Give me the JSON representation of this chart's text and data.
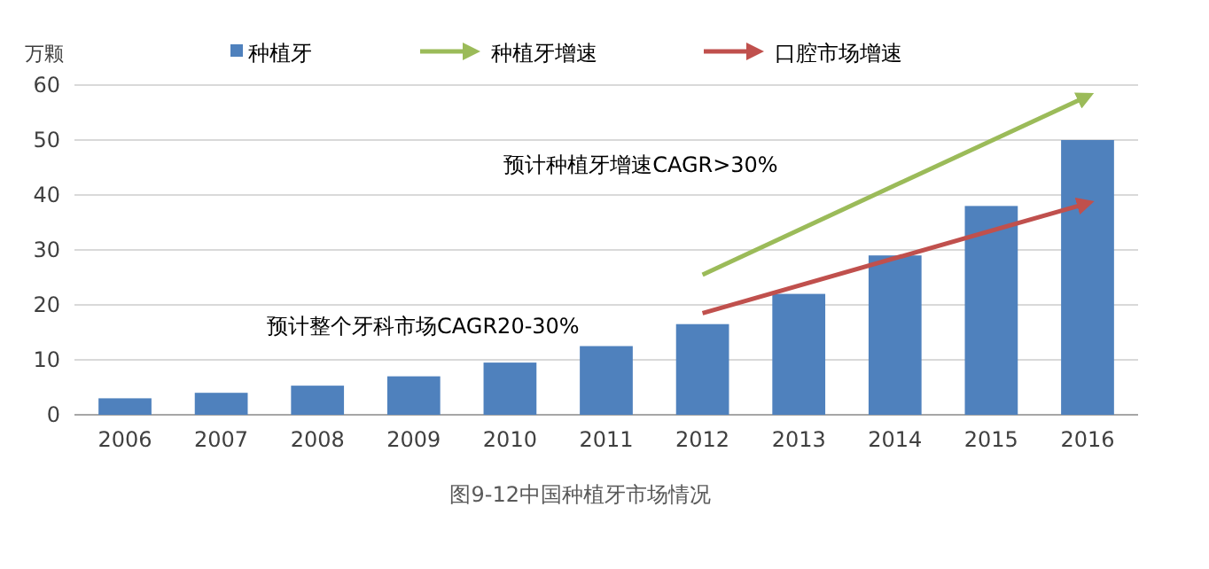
{
  "chart_data": {
    "type": "bar",
    "title": "图9-12中国种植牙市场情况",
    "ylabel": "万颗",
    "categories": [
      "2006",
      "2007",
      "2008",
      "2009",
      "2010",
      "2011",
      "2012",
      "2013",
      "2014",
      "2015",
      "2016"
    ],
    "series": [
      {
        "name": "种植牙",
        "color": "#4f81bd",
        "values": [
          3,
          4,
          5.3,
          7,
          9.5,
          12.5,
          16.5,
          22,
          29,
          38,
          50
        ]
      },
      {
        "name": "种植牙增速",
        "type": "line",
        "color": "#9bbb59",
        "values": [
          null,
          null,
          null,
          null,
          null,
          null,
          25.5,
          null,
          null,
          null,
          58
        ]
      },
      {
        "name": "口腔市场增速",
        "type": "line",
        "color": "#c0504d",
        "values": [
          null,
          null,
          null,
          null,
          null,
          null,
          18.5,
          null,
          null,
          null,
          38.5
        ]
      }
    ],
    "ylim": [
      0,
      60
    ],
    "yticks": [
      0,
      10,
      20,
      30,
      40,
      50,
      60
    ],
    "grid": "y",
    "legend": "top",
    "annotations": [
      "预计种植牙增速CAGR>30%",
      "预计整个牙科市场CAGR20-30%"
    ]
  }
}
